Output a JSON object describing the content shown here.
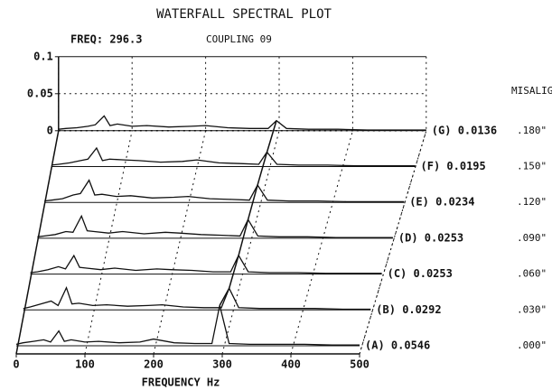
{
  "chart_data": {
    "type": "waterfall",
    "title": "WATERFALL SPECTRAL PLOT",
    "freq_label": "FREQ: 296.3",
    "subtitle": "COUPLING 09",
    "xlabel": "FREQUENCY Hz",
    "legend_title": "MISALIGNMENT",
    "xlim": [
      0,
      500
    ],
    "xticks": [
      0,
      100,
      200,
      300,
      400,
      500
    ],
    "ylim": [
      0,
      0.1
    ],
    "yticks": [
      0,
      0.05,
      0.1
    ],
    "grid": true,
    "color": "#111111",
    "x": [
      0,
      10,
      25,
      40,
      50,
      62,
      70,
      80,
      100,
      120,
      150,
      180,
      200,
      230,
      260,
      285,
      296.3,
      310,
      340,
      380,
      420,
      460,
      500
    ],
    "series": [
      {
        "name": "(A) 0.0546",
        "misalignment": ".000\"",
        "values": [
          0.002,
          0.004,
          0.006,
          0.008,
          0.005,
          0.02,
          0.006,
          0.008,
          0.005,
          0.006,
          0.004,
          0.005,
          0.009,
          0.004,
          0.003,
          0.003,
          0.0546,
          0.003,
          0.002,
          0.002,
          0.002,
          0.001,
          0.001
        ]
      },
      {
        "name": "(B) 0.0292",
        "misalignment": ".030\"",
        "values": [
          0.002,
          0.004,
          0.008,
          0.012,
          0.006,
          0.03,
          0.008,
          0.009,
          0.006,
          0.007,
          0.005,
          0.006,
          0.007,
          0.004,
          0.003,
          0.003,
          0.0292,
          0.003,
          0.002,
          0.002,
          0.002,
          0.001,
          0.001
        ]
      },
      {
        "name": "(C) 0.0253",
        "misalignment": ".060\"",
        "values": [
          0.002,
          0.003,
          0.006,
          0.01,
          0.007,
          0.025,
          0.009,
          0.008,
          0.006,
          0.008,
          0.005,
          0.007,
          0.006,
          0.005,
          0.003,
          0.003,
          0.0253,
          0.003,
          0.002,
          0.002,
          0.001,
          0.001,
          0.001
        ]
      },
      {
        "name": "(D) 0.0253",
        "misalignment": ".090\"",
        "values": [
          0.002,
          0.003,
          0.005,
          0.009,
          0.008,
          0.03,
          0.01,
          0.009,
          0.007,
          0.009,
          0.006,
          0.008,
          0.007,
          0.005,
          0.004,
          0.003,
          0.0253,
          0.003,
          0.002,
          0.002,
          0.001,
          0.001,
          0.001
        ]
      },
      {
        "name": "(E) 0.0234",
        "misalignment": ".120\"",
        "values": [
          0.002,
          0.003,
          0.005,
          0.01,
          0.012,
          0.03,
          0.01,
          0.011,
          0.008,
          0.009,
          0.006,
          0.007,
          0.008,
          0.005,
          0.004,
          0.003,
          0.0234,
          0.003,
          0.002,
          0.002,
          0.001,
          0.001,
          0.001
        ]
      },
      {
        "name": "(F) 0.0195",
        "misalignment": ".150\"",
        "values": [
          0.002,
          0.003,
          0.005,
          0.008,
          0.01,
          0.025,
          0.008,
          0.01,
          0.009,
          0.008,
          0.006,
          0.007,
          0.009,
          0.005,
          0.004,
          0.003,
          0.0195,
          0.003,
          0.002,
          0.002,
          0.001,
          0.001,
          0.001
        ]
      },
      {
        "name": "(G) 0.0136",
        "misalignment": ".180\"",
        "values": [
          0.002,
          0.003,
          0.004,
          0.006,
          0.008,
          0.02,
          0.007,
          0.009,
          0.006,
          0.007,
          0.005,
          0.006,
          0.007,
          0.004,
          0.003,
          0.003,
          0.0136,
          0.003,
          0.002,
          0.002,
          0.001,
          0.001,
          0.001
        ]
      }
    ]
  }
}
